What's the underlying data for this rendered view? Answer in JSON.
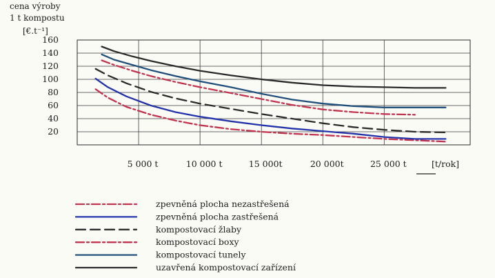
{
  "chart_data": {
    "type": "line",
    "title": "",
    "ylabel_lines": [
      "cena výroby",
      "1 t kompostu",
      "[€.t⁻¹]"
    ],
    "xlabel": "",
    "x_unit": "[t/rok]",
    "xlim": [
      0,
      32000
    ],
    "ylim": [
      0,
      160
    ],
    "x_ticks": [
      {
        "value": 5000,
        "label": "5 000 t"
      },
      {
        "value": 10000,
        "label": "10 000 t"
      },
      {
        "value": 15000,
        "label": "15 000t"
      },
      {
        "value": 20000,
        "label": "20 000t"
      },
      {
        "value": 25000,
        "label": "25 000 t"
      }
    ],
    "y_ticks": [
      {
        "value": 20,
        "label": "20"
      },
      {
        "value": 40,
        "label": "40"
      },
      {
        "value": 60,
        "label": "60"
      },
      {
        "value": 80,
        "label": "80"
      },
      {
        "value": 100,
        "label": "100"
      },
      {
        "value": 120,
        "label": "120"
      },
      {
        "value": 140,
        "label": "140"
      },
      {
        "value": 160,
        "label": "160"
      }
    ],
    "grid": true,
    "legend_position": "bottom-left",
    "series": [
      {
        "name": "zpevněná plocha nezastřešená",
        "color": "#c2334f",
        "style": "dashdot",
        "x": [
          1500,
          2500,
          4000,
          6000,
          8000,
          10000,
          12500,
          15000,
          17500,
          20000,
          22500,
          25000,
          27500,
          30000
        ],
        "y": [
          85,
          72,
          58,
          46,
          37,
          30,
          24,
          20,
          17,
          15,
          12,
          9,
          7,
          5
        ]
      },
      {
        "name": "zpevněná plocha zastřešená",
        "color": "#2233aa",
        "style": "solid",
        "x": [
          1500,
          2500,
          4000,
          6000,
          8000,
          10000,
          12500,
          15000,
          17500,
          20000,
          22500,
          25000,
          27500,
          30000
        ],
        "y": [
          101,
          88,
          74,
          60,
          50,
          43,
          36,
          30,
          25,
          21,
          17,
          12,
          9,
          9
        ]
      },
      {
        "name": "kompostovací žlaby",
        "color": "#2a2a2a",
        "style": "dashed",
        "x": [
          1500,
          2500,
          4000,
          6000,
          8000,
          10000,
          12500,
          15000,
          17500,
          20000,
          22500,
          25000,
          27500,
          30000
        ],
        "y": [
          116,
          106,
          94,
          81,
          71,
          63,
          55,
          47,
          40,
          33,
          27,
          23,
          20,
          19
        ]
      },
      {
        "name": "kompostovací boxy",
        "color": "#c2334f",
        "style": "dashdot",
        "x": [
          2000,
          3000,
          4500,
          6000,
          8000,
          10000,
          12500,
          15000,
          17500,
          20000,
          22500,
          25000,
          27500
        ],
        "y": [
          129,
          122,
          113,
          105,
          96,
          88,
          79,
          70,
          61,
          54,
          50,
          47,
          46
        ]
      },
      {
        "name": "kompostovací tunely",
        "color": "#1f4f7a",
        "style": "solid",
        "x": [
          2000,
          3000,
          4500,
          6000,
          8000,
          10000,
          12500,
          15000,
          17500,
          20000,
          22500,
          25000,
          27500,
          30000
        ],
        "y": [
          138,
          130,
          122,
          114,
          105,
          97,
          88,
          78,
          69,
          63,
          59,
          57,
          57,
          57
        ]
      },
      {
        "name": "uzavřená kompostovací zařízení",
        "color": "#2a2a2a",
        "style": "solid",
        "x": [
          2000,
          3000,
          4500,
          6000,
          8000,
          10000,
          12500,
          15000,
          17500,
          20000,
          22500,
          25000,
          27500,
          30000
        ],
        "y": [
          150,
          143,
          135,
          128,
          120,
          113,
          106,
          100,
          95,
          91,
          89,
          88,
          87,
          87
        ]
      }
    ]
  }
}
